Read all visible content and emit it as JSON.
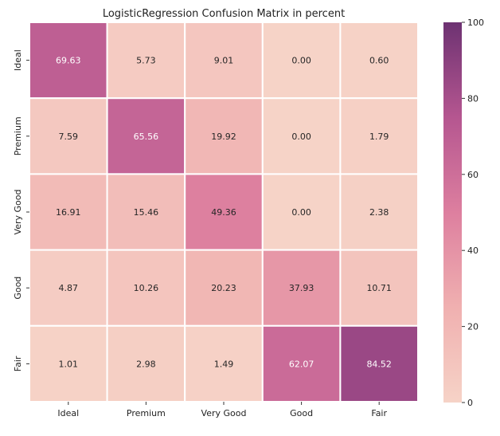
{
  "chart_data": {
    "type": "heatmap",
    "title": "LogisticRegression Confusion Matrix in percent",
    "xlabel": "",
    "ylabel": "",
    "x_categories": [
      "Ideal",
      "Premium",
      "Very Good",
      "Good",
      "Fair"
    ],
    "y_categories": [
      "Ideal",
      "Premium",
      "Very Good",
      "Good",
      "Fair"
    ],
    "values": [
      [
        69.63,
        5.73,
        9.01,
        0.0,
        0.6
      ],
      [
        7.59,
        65.56,
        19.92,
        0.0,
        1.79
      ],
      [
        16.91,
        15.46,
        49.36,
        0.0,
        2.38
      ],
      [
        4.87,
        10.26,
        20.23,
        37.93,
        10.71
      ],
      [
        1.01,
        2.98,
        1.49,
        62.07,
        84.52
      ]
    ],
    "value_format": "0.00",
    "color_range": [
      0,
      100
    ],
    "colorbar_ticks": [
      0,
      20,
      40,
      60,
      80,
      100
    ],
    "colormap": [
      "#f6d3c7",
      "#f0b0b0",
      "#dd7f9f",
      "#b55690",
      "#6d3272"
    ],
    "colorbar": "right",
    "grid": false
  }
}
